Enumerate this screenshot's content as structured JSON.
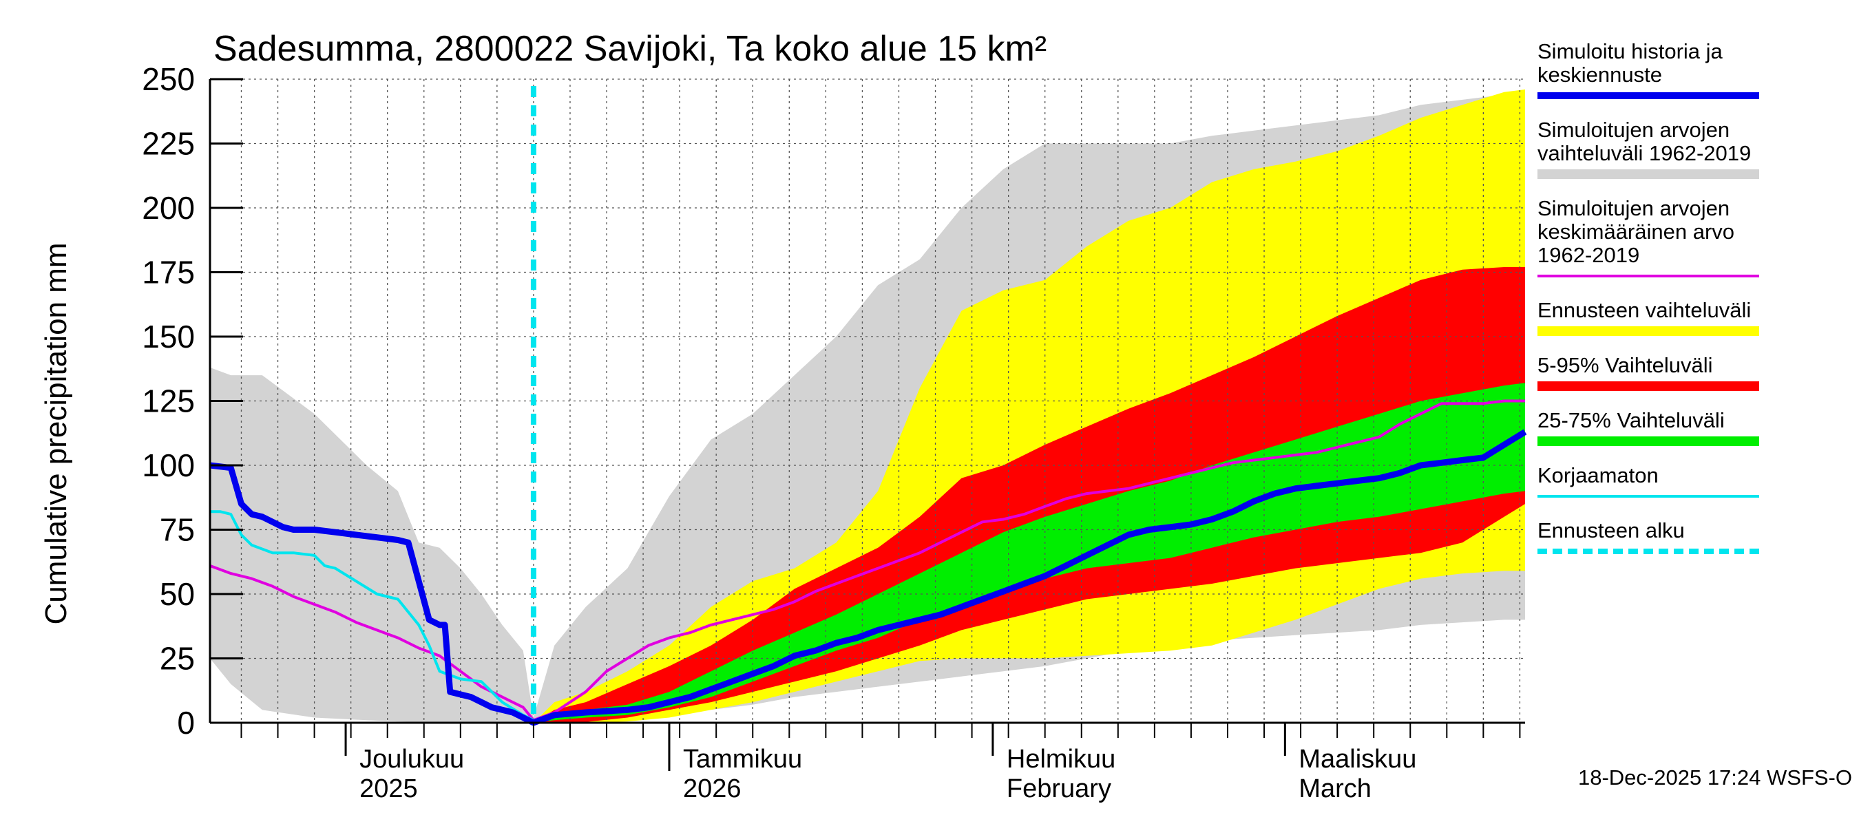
{
  "chart_data": {
    "type": "area",
    "title": "Sadesumma, 2800022 Savijoki, Ta koko alue 15 km²",
    "ylabel": "Cumulative precipitation   mm",
    "ylim": [
      0,
      250
    ],
    "y_ticks": [
      0,
      25,
      50,
      75,
      100,
      125,
      150,
      175,
      200,
      225,
      250
    ],
    "xlim_days": [
      0,
      126
    ],
    "x_unit": "days since 2025-11-18",
    "month_boundaries_days": [
      13,
      44,
      75,
      103
    ],
    "x_labels": [
      {
        "day": 13,
        "line1": "Joulukuu",
        "line2": "2025"
      },
      {
        "day": 44,
        "line1": "Tammikuu",
        "line2": "2026"
      },
      {
        "day": 75,
        "line1": "Helmikuu",
        "line2": "February"
      },
      {
        "day": 103,
        "line1": "Maaliskuu",
        "line2": "March"
      }
    ],
    "forecast_start_day": 31,
    "legend": [
      {
        "id": "history",
        "label_lines": [
          "Simuloitu historia ja",
          "keskiennuste"
        ],
        "color": "#0000ee",
        "style": "thick"
      },
      {
        "id": "range_hist",
        "label_lines": [
          "Simuloitujen arvojen",
          "vaihteluväli 1962-2019"
        ],
        "color": "#d3d3d3",
        "style": "band"
      },
      {
        "id": "mean_hist",
        "label_lines": [
          "Simuloitujen arvojen",
          "keskimääräinen arvo",
          "   1962-2019"
        ],
        "color": "#e000e0",
        "style": "thin"
      },
      {
        "id": "fc_range",
        "label_lines": [
          "Ennusteen vaihteluväli"
        ],
        "color": "#ffff00",
        "style": "band"
      },
      {
        "id": "p5_95",
        "label_lines": [
          "5-95% Vaihteluväli"
        ],
        "color": "#ff0000",
        "style": "band"
      },
      {
        "id": "p25_75",
        "label_lines": [
          "25-75% Vaihteluväli"
        ],
        "color": "#00ee00",
        "style": "band"
      },
      {
        "id": "uncorrected",
        "label_lines": [
          "Korjaamaton"
        ],
        "color": "#00e5ee",
        "style": "thin"
      },
      {
        "id": "fc_start",
        "label_lines": [
          "Ennusteen alku"
        ],
        "color": "#00e5ee",
        "style": "dashed"
      }
    ],
    "series": [
      {
        "name": "Simuloitujen arvojen vaihteluväli 1962-2019",
        "kind": "band",
        "color": "#d3d3d3",
        "days": [
          0,
          2,
          5,
          10,
          15,
          18,
          20,
          22,
          24,
          26,
          28,
          30,
          31,
          33,
          36,
          40,
          44,
          48,
          52,
          56,
          60,
          64,
          68,
          72,
          76,
          80,
          84,
          88,
          92,
          96,
          100,
          104,
          108,
          112,
          116,
          120,
          124,
          126
        ],
        "upper": [
          138,
          135,
          135,
          120,
          100,
          90,
          70,
          68,
          60,
          50,
          38,
          28,
          2,
          30,
          45,
          60,
          88,
          110,
          120,
          135,
          150,
          170,
          180,
          200,
          215,
          225,
          225,
          225,
          225,
          228,
          230,
          232,
          234,
          236,
          240,
          242,
          244,
          245
        ],
        "lower": [
          25,
          15,
          5,
          2,
          1,
          0.5,
          0.3,
          0.2,
          0.1,
          0.1,
          0,
          0,
          0,
          0.5,
          1,
          2,
          3,
          5,
          7,
          10,
          12,
          14,
          16,
          18,
          20,
          22,
          25,
          28,
          30,
          32,
          33,
          34,
          35,
          36,
          38,
          39,
          40,
          40
        ]
      },
      {
        "name": "Ennusteen vaihteluväli",
        "kind": "band",
        "color": "#ffff00",
        "days": [
          31,
          33,
          36,
          40,
          44,
          48,
          52,
          56,
          60,
          64,
          68,
          72,
          76,
          80,
          84,
          88,
          92,
          96,
          100,
          104,
          108,
          112,
          116,
          120,
          124,
          126
        ],
        "upper": [
          0,
          8,
          12,
          20,
          30,
          45,
          55,
          60,
          70,
          90,
          130,
          160,
          168,
          172,
          185,
          195,
          200,
          210,
          215,
          218,
          222,
          228,
          235,
          240,
          245,
          246
        ],
        "lower": [
          0,
          0,
          0,
          0.5,
          2,
          5,
          8,
          12,
          16,
          20,
          24,
          25,
          25,
          25,
          26,
          27,
          28,
          30,
          35,
          40,
          46,
          52,
          56,
          58,
          59,
          59
        ]
      },
      {
        "name": "5-95% Vaihteluväli",
        "kind": "band",
        "color": "#ff0000",
        "days": [
          31,
          33,
          36,
          40,
          44,
          48,
          52,
          56,
          60,
          64,
          68,
          72,
          76,
          80,
          84,
          88,
          92,
          96,
          100,
          104,
          108,
          112,
          116,
          120,
          124,
          126
        ],
        "upper": [
          0,
          5,
          8,
          15,
          22,
          30,
          40,
          52,
          60,
          68,
          80,
          95,
          100,
          108,
          115,
          122,
          128,
          135,
          142,
          150,
          158,
          165,
          172,
          176,
          177,
          177
        ],
        "lower": [
          0,
          0,
          0.3,
          2,
          5,
          8,
          12,
          16,
          20,
          25,
          30,
          36,
          40,
          44,
          48,
          50,
          52,
          54,
          57,
          60,
          62,
          64,
          66,
          70,
          80,
          85
        ]
      },
      {
        "name": "25-75% Vaihteluväli",
        "kind": "band",
        "color": "#00ee00",
        "days": [
          31,
          33,
          36,
          40,
          44,
          48,
          52,
          56,
          60,
          64,
          68,
          72,
          76,
          80,
          84,
          88,
          92,
          96,
          100,
          104,
          108,
          112,
          116,
          120,
          124,
          126
        ],
        "upper": [
          0,
          3,
          5,
          7,
          12,
          20,
          28,
          35,
          42,
          50,
          58,
          66,
          74,
          80,
          85,
          90,
          94,
          100,
          105,
          110,
          115,
          120,
          125,
          128,
          131,
          132
        ],
        "lower": [
          0,
          1,
          2,
          3,
          6,
          10,
          16,
          22,
          28,
          33,
          40,
          46,
          52,
          56,
          60,
          62,
          64,
          68,
          72,
          75,
          78,
          80,
          83,
          86,
          89,
          90
        ]
      },
      {
        "name": "Simuloitujen arvojen keskimääräinen arvo 1962-2019",
        "kind": "line",
        "color": "#e000e0",
        "days": [
          0,
          2,
          4,
          6,
          8,
          10,
          12,
          14,
          16,
          18,
          20,
          22,
          24,
          26,
          28,
          30,
          31,
          33,
          36,
          38,
          40,
          42,
          44,
          46,
          48,
          50,
          52,
          54,
          56,
          58,
          60,
          62,
          64,
          66,
          68,
          70,
          72,
          74,
          76,
          78,
          80,
          82,
          84,
          86,
          88,
          90,
          92,
          94,
          96,
          98,
          100,
          102,
          104,
          106,
          108,
          110,
          112,
          114,
          116,
          118,
          120,
          122,
          124,
          126
        ],
        "values": [
          61,
          58,
          56,
          53,
          49,
          46,
          43,
          39,
          36,
          33,
          29,
          26,
          20,
          14,
          10,
          6,
          1,
          4,
          12,
          20,
          25,
          30,
          33,
          35,
          38,
          40,
          42,
          44,
          47,
          51,
          54,
          57,
          60,
          63,
          66,
          70,
          74,
          78,
          79,
          81,
          84,
          87,
          89,
          90,
          91,
          93,
          95,
          97,
          99,
          101,
          102,
          103,
          104,
          105,
          107,
          109,
          111,
          116,
          120,
          124,
          124,
          124,
          125,
          125
        ]
      },
      {
        "name": "Korjaamaton",
        "kind": "line",
        "color": "#00e5ee",
        "days": [
          0,
          1,
          2,
          3,
          4,
          6,
          8,
          10,
          11,
          12,
          14,
          16,
          18,
          20,
          21,
          22,
          24,
          26,
          27,
          28,
          30,
          31
        ],
        "values": [
          82,
          82,
          81,
          73,
          69,
          66,
          66,
          65,
          61,
          60,
          55,
          50,
          48,
          38,
          30,
          20,
          17,
          16,
          12,
          8,
          3,
          1
        ]
      },
      {
        "name": "Simuloitu historia ja keskiennuste",
        "kind": "line",
        "color": "#0000ee",
        "days": [
          0,
          2,
          3,
          4,
          5,
          7,
          8,
          10,
          12,
          14,
          16,
          18,
          19,
          20,
          21,
          22,
          22.5,
          23,
          24,
          25,
          27,
          28,
          29,
          30,
          31,
          33,
          36,
          40,
          42,
          44,
          46,
          48,
          50,
          52,
          54,
          56,
          58,
          60,
          62,
          64,
          66,
          68,
          70,
          72,
          74,
          76,
          78,
          80,
          82,
          84,
          86,
          88,
          90,
          92,
          94,
          96,
          98,
          100,
          102,
          104,
          106,
          108,
          110,
          112,
          114,
          116,
          118,
          120,
          122,
          124,
          126
        ],
        "values": [
          100,
          99,
          85,
          81,
          80,
          76,
          75,
          75,
          74,
          73,
          72,
          71,
          70,
          55,
          40,
          38,
          38,
          12,
          11,
          10,
          6,
          5,
          4,
          2,
          0,
          3,
          4,
          5,
          6,
          8,
          10,
          13,
          16,
          19,
          22,
          26,
          28,
          31,
          33,
          36,
          38,
          40,
          42,
          45,
          48,
          51,
          54,
          57,
          61,
          65,
          69,
          73,
          75,
          76,
          77,
          79,
          82,
          86,
          89,
          91,
          92,
          93,
          94,
          95,
          97,
          100,
          101,
          102,
          103,
          108,
          113
        ]
      }
    ]
  },
  "footer": {
    "timestamp": "18-Dec-2025 17:24 WSFS-O"
  }
}
